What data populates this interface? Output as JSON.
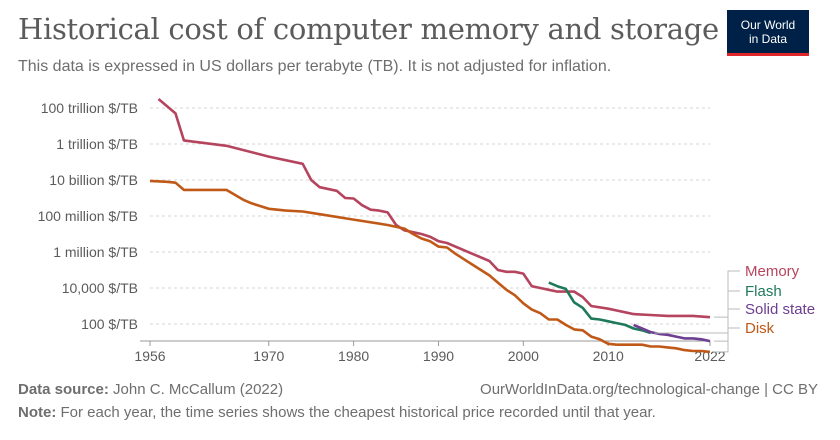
{
  "header": {
    "title": "Historical cost of computer memory and storage",
    "subtitle": "This data is expressed in US dollars per terabyte (TB). It is not adjusted for inflation.",
    "logo_line1": "Our World",
    "logo_line2": "in Data"
  },
  "footer": {
    "source_label": "Data source:",
    "source_text": "John C. McCallum (2022)",
    "url_text": "OurWorldInData.org/technological-change | CC BY",
    "note_label": "Note:",
    "note_text": "For each year, the time series shows the cheapest historical price recorded until that year."
  },
  "chart_data": {
    "type": "line",
    "y_scale": "log",
    "xlim": [
      1956,
      2022
    ],
    "ylim_log10": [
      1.5,
      14.5
    ],
    "x_ticks": [
      {
        "value": 1956,
        "label": "1956"
      },
      {
        "value": 1970,
        "label": "1970"
      },
      {
        "value": 1980,
        "label": "1980"
      },
      {
        "value": 1990,
        "label": "1990"
      },
      {
        "value": 2000,
        "label": "2000"
      },
      {
        "value": 2010,
        "label": "2010"
      },
      {
        "value": 2022,
        "label": "2022"
      }
    ],
    "y_ticks": [
      {
        "log10": 2,
        "label": "100 $/TB"
      },
      {
        "log10": 4,
        "label": "10,000 $/TB"
      },
      {
        "log10": 6,
        "label": "1 million $/TB"
      },
      {
        "log10": 8,
        "label": "100 million $/TB"
      },
      {
        "log10": 10,
        "label": "10 billion $/TB"
      },
      {
        "log10": 12,
        "label": "1 trillion $/TB"
      },
      {
        "log10": 14,
        "label": "100 trillion $/TB"
      }
    ],
    "grid": "horizontal dashed",
    "legend": "right, labels at line ends",
    "series": [
      {
        "name": "Memory",
        "color": "#b5445e",
        "points": [
          [
            1957,
            14.5
          ],
          [
            1959,
            13.7
          ],
          [
            1960,
            12.2
          ],
          [
            1965,
            11.9
          ],
          [
            1970,
            11.3
          ],
          [
            1974,
            10.9
          ],
          [
            1975,
            10.0
          ],
          [
            1976,
            9.6
          ],
          [
            1978,
            9.4
          ],
          [
            1979,
            9.0
          ],
          [
            1980,
            8.97
          ],
          [
            1981,
            8.6
          ],
          [
            1982,
            8.35
          ],
          [
            1983,
            8.3
          ],
          [
            1984,
            8.2
          ],
          [
            1985,
            7.5
          ],
          [
            1986,
            7.2
          ],
          [
            1987,
            7.1
          ],
          [
            1988,
            7.0
          ],
          [
            1989,
            6.85
          ],
          [
            1990,
            6.6
          ],
          [
            1991,
            6.5
          ],
          [
            1994,
            5.9
          ],
          [
            1996,
            5.5
          ],
          [
            1997,
            5.0
          ],
          [
            1998,
            4.9
          ],
          [
            1999,
            4.9
          ],
          [
            2000,
            4.8
          ],
          [
            2001,
            4.1
          ],
          [
            2002,
            4.0
          ],
          [
            2003,
            3.9
          ],
          [
            2004,
            3.8
          ],
          [
            2006,
            3.8
          ],
          [
            2007,
            3.5
          ],
          [
            2008,
            3.0
          ],
          [
            2010,
            2.85
          ],
          [
            2011,
            2.75
          ],
          [
            2012,
            2.65
          ],
          [
            2013,
            2.55
          ],
          [
            2015,
            2.5
          ],
          [
            2017,
            2.45
          ],
          [
            2020,
            2.45
          ],
          [
            2022,
            2.38
          ]
        ]
      },
      {
        "name": "Flash",
        "color": "#1f7a5c",
        "points": [
          [
            2003,
            4.3
          ],
          [
            2004,
            4.1
          ],
          [
            2005,
            3.95
          ],
          [
            2006,
            3.2
          ],
          [
            2007,
            2.9
          ],
          [
            2008,
            2.3
          ],
          [
            2009,
            2.25
          ],
          [
            2010,
            2.15
          ],
          [
            2011,
            2.05
          ],
          [
            2012,
            1.95
          ],
          [
            2013,
            1.75
          ],
          [
            2014,
            1.65
          ],
          [
            2015,
            1.5
          ]
        ]
      },
      {
        "name": "Solid state",
        "color": "#6d3e91",
        "points": [
          [
            2013,
            1.95
          ],
          [
            2014,
            1.75
          ],
          [
            2015,
            1.55
          ],
          [
            2016,
            1.45
          ],
          [
            2017,
            1.4
          ],
          [
            2018,
            1.3
          ],
          [
            2019,
            1.2
          ],
          [
            2020,
            1.2
          ],
          [
            2021,
            1.15
          ],
          [
            2022,
            1.05
          ]
        ]
      },
      {
        "name": "Disk",
        "color": "#c05917",
        "points": [
          [
            1956,
            9.95
          ],
          [
            1958,
            9.9
          ],
          [
            1959,
            9.85
          ],
          [
            1960,
            9.45
          ],
          [
            1962,
            9.45
          ],
          [
            1964,
            9.45
          ],
          [
            1965,
            9.45
          ],
          [
            1967,
            8.9
          ],
          [
            1968,
            8.7
          ],
          [
            1970,
            8.4
          ],
          [
            1972,
            8.3
          ],
          [
            1974,
            8.25
          ],
          [
            1976,
            8.1
          ],
          [
            1980,
            7.8
          ],
          [
            1984,
            7.5
          ],
          [
            1986,
            7.3
          ],
          [
            1987,
            7.0
          ],
          [
            1988,
            6.75
          ],
          [
            1989,
            6.6
          ],
          [
            1990,
            6.3
          ],
          [
            1991,
            6.25
          ],
          [
            1992,
            5.9
          ],
          [
            1993,
            5.6
          ],
          [
            1994,
            5.3
          ],
          [
            1995,
            5.0
          ],
          [
            1996,
            4.7
          ],
          [
            1997,
            4.3
          ],
          [
            1998,
            3.9
          ],
          [
            1999,
            3.6
          ],
          [
            2000,
            3.15
          ],
          [
            2001,
            2.8
          ],
          [
            2002,
            2.6
          ],
          [
            2003,
            2.25
          ],
          [
            2004,
            2.25
          ],
          [
            2005,
            1.95
          ],
          [
            2006,
            1.7
          ],
          [
            2007,
            1.65
          ],
          [
            2008,
            1.3
          ],
          [
            2009,
            1.15
          ],
          [
            2010,
            0.9
          ],
          [
            2011,
            0.85
          ],
          [
            2012,
            0.85
          ],
          [
            2013,
            0.85
          ],
          [
            2014,
            0.85
          ],
          [
            2015,
            0.75
          ],
          [
            2016,
            0.75
          ],
          [
            2017,
            0.7
          ],
          [
            2018,
            0.65
          ],
          [
            2019,
            0.55
          ],
          [
            2020,
            0.5
          ],
          [
            2021,
            0.5
          ],
          [
            2022,
            0.45
          ]
        ]
      }
    ]
  }
}
